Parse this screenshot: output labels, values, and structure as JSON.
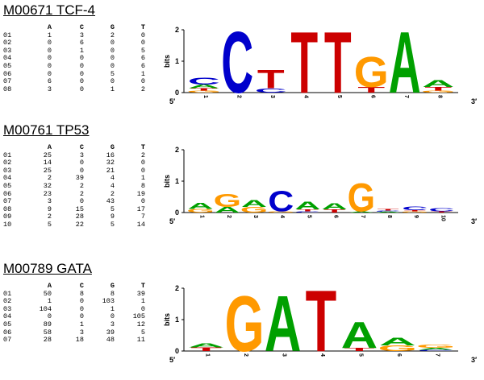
{
  "motifs": [
    {
      "title": "M00671 TCF-4",
      "header": [
        "A",
        "C",
        "G",
        "T"
      ],
      "rows": [
        [
          "01",
          "1",
          "3",
          "2",
          "0"
        ],
        [
          "02",
          "0",
          "6",
          "0",
          "0"
        ],
        [
          "03",
          "0",
          "1",
          "0",
          "5"
        ],
        [
          "04",
          "0",
          "0",
          "0",
          "6"
        ],
        [
          "05",
          "0",
          "0",
          "0",
          "6"
        ],
        [
          "06",
          "0",
          "0",
          "5",
          "1"
        ],
        [
          "07",
          "6",
          "0",
          "0",
          "0"
        ],
        [
          "08",
          "3",
          "0",
          "1",
          "2"
        ]
      ],
      "logo": {
        "ylabel": "bits",
        "yticks": [
          "0",
          "1",
          "2"
        ],
        "ymax": 2,
        "start_label": "5′",
        "end_label": "3′",
        "positions": [
          {
            "pos": "1",
            "stack": [
              [
                "G",
                0.06
              ],
              [
                "T",
                0.08
              ],
              [
                "A",
                0.12
              ],
              [
                "C",
                0.22
              ]
            ]
          },
          {
            "pos": "2",
            "stack": [
              [
                "C",
                2.0
              ]
            ]
          },
          {
            "pos": "3",
            "stack": [
              [
                "C",
                0.14
              ],
              [
                "T",
                0.6
              ]
            ]
          },
          {
            "pos": "4",
            "stack": [
              [
                "T",
                2.0
              ]
            ]
          },
          {
            "pos": "5",
            "stack": [
              [
                "T",
                2.0
              ]
            ]
          },
          {
            "pos": "6",
            "stack": [
              [
                "T",
                0.18
              ],
              [
                "G",
                1.0
              ]
            ]
          },
          {
            "pos": "7",
            "stack": [
              [
                "A",
                2.0
              ]
            ]
          },
          {
            "pos": "8",
            "stack": [
              [
                "G",
                0.06
              ],
              [
                "T",
                0.12
              ],
              [
                "A",
                0.22
              ]
            ]
          }
        ]
      }
    },
    {
      "title": "M00761 TP53",
      "header": [
        "A",
        "C",
        "G",
        "T"
      ],
      "rows": [
        [
          "01",
          "25",
          "3",
          "16",
          "2"
        ],
        [
          "02",
          "14",
          "0",
          "32",
          "0"
        ],
        [
          "03",
          "25",
          "0",
          "21",
          "0"
        ],
        [
          "04",
          "2",
          "39",
          "4",
          "1"
        ],
        [
          "05",
          "32",
          "2",
          "4",
          "8"
        ],
        [
          "06",
          "23",
          "2",
          "2",
          "19"
        ],
        [
          "07",
          "3",
          "0",
          "43",
          "0"
        ],
        [
          "08",
          "9",
          "15",
          "5",
          "17"
        ],
        [
          "09",
          "2",
          "28",
          "9",
          "7"
        ],
        [
          "10",
          "5",
          "22",
          "5",
          "14"
        ]
      ],
      "logo": {
        "ylabel": "bits",
        "yticks": [
          "0",
          "1",
          "2"
        ],
        "ymax": 2,
        "start_label": "5′",
        "end_label": "3′",
        "positions": [
          {
            "pos": "1",
            "stack": [
              [
                "G",
                0.12
              ],
              [
                "A",
                0.2
              ]
            ]
          },
          {
            "pos": "2",
            "stack": [
              [
                "A",
                0.18
              ],
              [
                "G",
                0.42
              ]
            ]
          },
          {
            "pos": "3",
            "stack": [
              [
                "G",
                0.18
              ],
              [
                "A",
                0.22
              ]
            ]
          },
          {
            "pos": "4",
            "stack": [
              [
                "G",
                0.04
              ],
              [
                "C",
                0.66
              ]
            ]
          },
          {
            "pos": "5",
            "stack": [
              [
                "C",
                0.04
              ],
              [
                "T",
                0.06
              ],
              [
                "A",
                0.26
              ]
            ]
          },
          {
            "pos": "6",
            "stack": [
              [
                "T",
                0.1
              ],
              [
                "A",
                0.2
              ]
            ]
          },
          {
            "pos": "7",
            "stack": [
              [
                "A",
                0.04
              ],
              [
                "G",
                0.92
              ]
            ]
          },
          {
            "pos": "8",
            "stack": [
              [
                "A",
                0.03
              ],
              [
                "C",
                0.04
              ],
              [
                "T",
                0.05
              ]
            ]
          },
          {
            "pos": "9",
            "stack": [
              [
                "G",
                0.04
              ],
              [
                "T",
                0.04
              ],
              [
                "C",
                0.12
              ]
            ]
          },
          {
            "pos": "10",
            "stack": [
              [
                "T",
                0.04
              ],
              [
                "C",
                0.1
              ]
            ]
          }
        ]
      }
    },
    {
      "title": "M00789 GATA",
      "header": [
        "A",
        "C",
        "G",
        "T"
      ],
      "rows": [
        [
          "01",
          "50",
          "8",
          "8",
          "39"
        ],
        [
          "02",
          "1",
          "0",
          "103",
          "1"
        ],
        [
          "03",
          "104",
          "0",
          "1",
          "0"
        ],
        [
          "04",
          "0",
          "0",
          "0",
          "105"
        ],
        [
          "05",
          "89",
          "1",
          "3",
          "12"
        ],
        [
          "06",
          "58",
          "3",
          "39",
          "5"
        ],
        [
          "07",
          "28",
          "18",
          "48",
          "11"
        ]
      ],
      "logo": {
        "ylabel": "bits",
        "yticks": [
          "0",
          "1",
          "2"
        ],
        "ymax": 2,
        "start_label": "5′",
        "end_label": "3′",
        "positions": [
          {
            "pos": "1",
            "stack": [
              [
                "T",
                0.12
              ],
              [
                "A",
                0.14
              ]
            ]
          },
          {
            "pos": "2",
            "stack": [
              [
                "G",
                1.82
              ]
            ]
          },
          {
            "pos": "3",
            "stack": [
              [
                "A",
                1.82
              ]
            ]
          },
          {
            "pos": "4",
            "stack": [
              [
                "T",
                2.0
              ]
            ]
          },
          {
            "pos": "5",
            "stack": [
              [
                "T",
                0.1
              ],
              [
                "A",
                0.86
              ]
            ]
          },
          {
            "pos": "6",
            "stack": [
              [
                "G",
                0.18
              ],
              [
                "A",
                0.26
              ]
            ]
          },
          {
            "pos": "7",
            "stack": [
              [
                "C",
                0.04
              ],
              [
                "A",
                0.06
              ],
              [
                "G",
                0.1
              ]
            ]
          }
        ]
      }
    }
  ],
  "colors": {
    "A": "#00a000",
    "C": "#0000cc",
    "G": "#ff9900",
    "T": "#cc0000"
  }
}
